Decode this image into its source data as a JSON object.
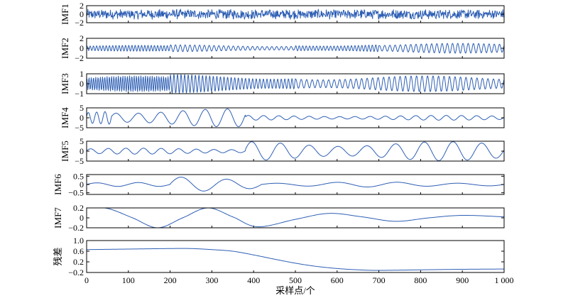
{
  "chart_data": {
    "type": "line",
    "xlabel": "采样点/个",
    "xlim": [
      0,
      1000
    ],
    "xticks": [
      0,
      100,
      200,
      300,
      400,
      500,
      600,
      700,
      800,
      900,
      1000
    ],
    "xtick_labels": [
      "0",
      "100",
      "200",
      "300",
      "400",
      "500",
      "600",
      "700",
      "800",
      "900",
      "1 000"
    ],
    "line_color": "#2e5fb4",
    "panels": [
      {
        "ylabel": "IMF1",
        "ylim": [
          -2,
          2
        ],
        "yticks": [
          -2,
          0,
          2
        ],
        "ytick_labels": [
          "−2",
          "0",
          "2"
        ],
        "kind": "noise",
        "approx_amplitude": 1.2,
        "segments": [
          [
            0,
            1000,
            50,
            1.2
          ]
        ]
      },
      {
        "ylabel": "IMF2",
        "ylim": [
          -2,
          2
        ],
        "yticks": [
          -2,
          0,
          2
        ],
        "ytick_labels": [
          "−2",
          "0",
          "2"
        ],
        "kind": "oscillation",
        "segments": [
          [
            0,
            200,
            26,
            0.6
          ],
          [
            200,
            500,
            26,
            0.7
          ],
          [
            500,
            700,
            24,
            0.9
          ],
          [
            700,
            1000,
            24,
            1.0
          ]
        ]
      },
      {
        "ylabel": "IMF3",
        "ylim": [
          -1,
          1
        ],
        "yticks": [
          -1,
          0,
          1
        ],
        "ytick_labels": [
          "−1",
          "0",
          "1"
        ],
        "kind": "oscillation",
        "segments": [
          [
            0,
            200,
            37,
            0.8
          ],
          [
            200,
            500,
            35,
            0.95
          ],
          [
            500,
            1000,
            38,
            0.8
          ]
        ]
      },
      {
        "ylabel": "IMF4",
        "ylim": [
          -5,
          5
        ],
        "yticks": [
          -5,
          0,
          5
        ],
        "ytick_labels": [
          "−5",
          "0",
          "5"
        ],
        "kind": "oscillation",
        "segments": [
          [
            0,
            60,
            3,
            3.5
          ],
          [
            60,
            380,
            6,
            4.5
          ],
          [
            380,
            1000,
            17,
            1.2
          ]
        ]
      },
      {
        "ylabel": "IMF5",
        "ylim": [
          -5,
          5
        ],
        "yticks": [
          -5,
          0,
          5
        ],
        "ytick_labels": [
          "−5",
          "0",
          "5"
        ],
        "kind": "oscillation",
        "segments": [
          [
            0,
            380,
            9,
            1.5
          ],
          [
            380,
            1000,
            9,
            4.8
          ]
        ]
      },
      {
        "ylabel": "IMF6",
        "ylim": [
          -0.6,
          0.6
        ],
        "yticks": [
          -0.5,
          0,
          0.5
        ],
        "ytick_labels": [
          "−0.5",
          "0",
          "0.5"
        ],
        "kind": "oscillation",
        "segments": [
          [
            0,
            200,
            2,
            0.12
          ],
          [
            200,
            420,
            2,
            0.45
          ],
          [
            420,
            1000,
            4,
            0.15
          ]
        ]
      },
      {
        "ylabel": "IMF7",
        "ylim": [
          -0.2,
          0.2
        ],
        "yticks": [
          -0.2,
          0,
          0.2
        ],
        "ytick_labels": [
          "−0.2",
          "0",
          "0.2"
        ],
        "kind": "points",
        "x": [
          0,
          50,
          110,
          170,
          230,
          290,
          350,
          410,
          500,
          580,
          660,
          740,
          820,
          900,
          1000
        ],
        "y": [
          0.2,
          0.19,
          0.0,
          -0.2,
          0.0,
          0.2,
          0.02,
          -0.18,
          -0.03,
          0.09,
          0.02,
          -0.07,
          0.0,
          0.05,
          0.02
        ]
      },
      {
        "ylabel": "残差",
        "ylim": [
          -0.2,
          1.0
        ],
        "yticks": [
          -0.2,
          0.2,
          0.6,
          1.0
        ],
        "ytick_labels": [
          "−0.2",
          "0.2",
          "0.6",
          "1.0"
        ],
        "kind": "points",
        "x": [
          0,
          100,
          200,
          250,
          300,
          350,
          400,
          450,
          500,
          550,
          600,
          650,
          700,
          800,
          900,
          1000
        ],
        "y": [
          0.66,
          0.68,
          0.7,
          0.7,
          0.66,
          0.6,
          0.46,
          0.3,
          0.15,
          0.03,
          -0.05,
          -0.1,
          -0.12,
          -0.1,
          -0.08,
          -0.07
        ]
      }
    ]
  }
}
